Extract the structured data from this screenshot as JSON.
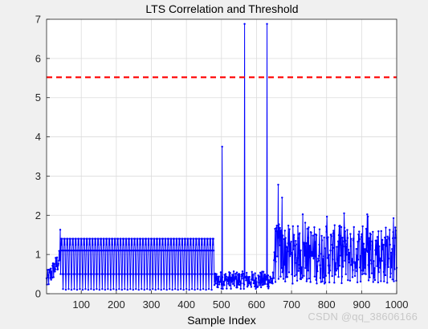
{
  "chart_data": {
    "type": "line",
    "title": "LTS Correlation and Threshold",
    "xlabel": "Sample Index",
    "ylabel": "",
    "xlim": [
      1,
      1000
    ],
    "ylim": [
      0,
      7
    ],
    "xticks": [
      100,
      200,
      300,
      400,
      500,
      600,
      700,
      800,
      900,
      1000
    ],
    "yticks": [
      0,
      1,
      2,
      3,
      4,
      5,
      6,
      7
    ],
    "grid": true,
    "series": [
      {
        "style": "solid line with point markers",
        "color": "#0000ff",
        "segments": [
          {
            "x_range": [
              1,
              40
            ],
            "description": "ramp from about 0.3 to 0.9"
          },
          {
            "x_range": [
              40,
              480
            ],
            "description": "periodic pattern with period ~16, values cycling between about 0.1 and 1.4 (levels ~0.5, ~1.1, ~1.25, ~1.4)"
          },
          {
            "x_range": [
              480,
              650
            ],
            "description": "low values about 0.1 to 0.6 with isolated peaks"
          },
          {
            "x_range": [
              650,
              1000
            ],
            "description": "noisy values about 0.2 to 2.0"
          }
        ],
        "peaks": [
          {
            "x": 40,
            "y": 1.63
          },
          {
            "x": 502,
            "y": 3.75
          },
          {
            "x": 566,
            "y": 6.88
          },
          {
            "x": 630,
            "y": 6.88
          },
          {
            "x": 662,
            "y": 2.78
          },
          {
            "x": 673,
            "y": 2.45
          },
          {
            "x": 850,
            "y": 2.05
          }
        ]
      },
      {
        "style": "dashed",
        "color": "#ff0000",
        "y": 5.52
      }
    ]
  },
  "watermark": "CSDN @qq_38606166"
}
